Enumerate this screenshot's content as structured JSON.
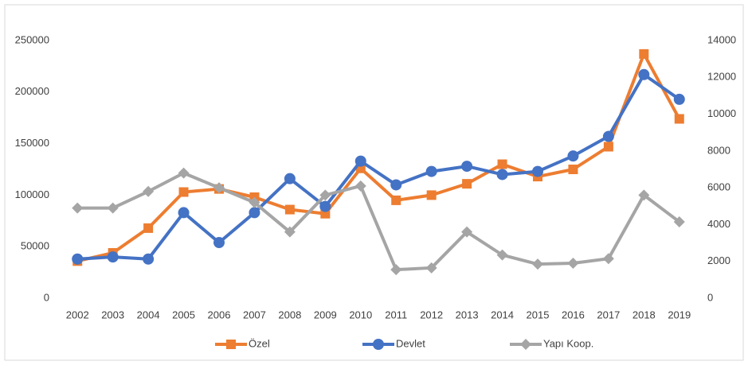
{
  "chart_data": {
    "type": "line",
    "categories": [
      "2002",
      "2003",
      "2004",
      "2005",
      "2006",
      "2007",
      "2008",
      "2009",
      "2010",
      "2011",
      "2012",
      "2013",
      "2014",
      "2015",
      "2016",
      "2017",
      "2018",
      "2019"
    ],
    "series": [
      {
        "name": "Özel",
        "color": "#ed7d31",
        "marker": "square",
        "axis": "y",
        "values": [
          36000,
          44000,
          68000,
          103000,
          106000,
          98000,
          86000,
          82000,
          126000,
          95000,
          100000,
          111000,
          130000,
          118000,
          125000,
          147000,
          237000,
          174000
        ]
      },
      {
        "name": "Devlet",
        "color": "#4472c4",
        "marker": "circle",
        "axis": "y",
        "values": [
          38000,
          40000,
          38000,
          83000,
          54000,
          83000,
          116000,
          89000,
          133000,
          110000,
          123000,
          128000,
          120000,
          123000,
          138000,
          157000,
          217000,
          193000
        ]
      },
      {
        "name": "Yapı Koop.",
        "color": "#a5a5a5",
        "marker": "diamond",
        "axis": "y2",
        "values": [
          4900,
          4900,
          5800,
          6800,
          6000,
          5200,
          3600,
          5600,
          6100,
          1550,
          1650,
          3600,
          2350,
          1850,
          1900,
          2150,
          5600,
          4150
        ]
      }
    ],
    "ylim": [
      0,
      250000
    ],
    "yticks": [
      0,
      50000,
      100000,
      150000,
      200000,
      250000
    ],
    "y2lim": [
      0,
      14000
    ],
    "y2ticks": [
      0,
      2000,
      4000,
      6000,
      8000,
      10000,
      12000,
      14000
    ],
    "grid": false,
    "legend": "bottom"
  }
}
